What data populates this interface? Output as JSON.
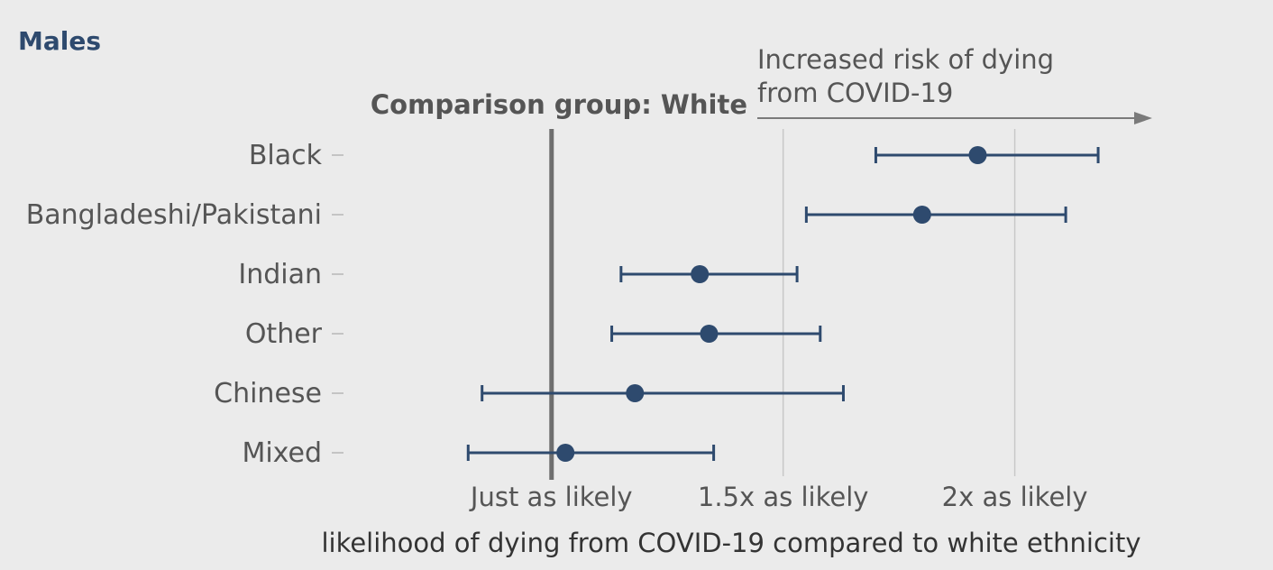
{
  "chart_data": {
    "type": "forest",
    "title": "Males",
    "xlabel": "likelihood of dying from COVID-19 compared to white ethnicity",
    "reference": {
      "value": 1.0,
      "label": "Comparison group: White"
    },
    "annotation": {
      "lines": [
        "Increased risk of dying",
        "from COVID-19"
      ],
      "direction": "right"
    },
    "x_ticks": [
      {
        "value": 1.0,
        "label": "Just as likely"
      },
      {
        "value": 1.5,
        "label": "1.5x as likely"
      },
      {
        "value": 2.0,
        "label": "2x as likely"
      }
    ],
    "xlim": [
      0.22,
      2.32
    ],
    "grid": "vertical",
    "categories": [
      "Black",
      "Bangladeshi/Pakistani",
      "Indian",
      "Other",
      "Chinese",
      "Mixed"
    ],
    "estimates": [
      1.92,
      1.8,
      1.32,
      1.34,
      1.18,
      1.03
    ],
    "lower": [
      1.7,
      1.55,
      1.15,
      1.13,
      0.85,
      0.82
    ],
    "upper": [
      2.18,
      2.11,
      1.53,
      1.58,
      1.63,
      1.35
    ],
    "colors": {
      "point": "#2e4a6e",
      "reference_line": "#6e6e6e",
      "grid": "#c8c8c8",
      "title": "#2e4a6e"
    }
  }
}
